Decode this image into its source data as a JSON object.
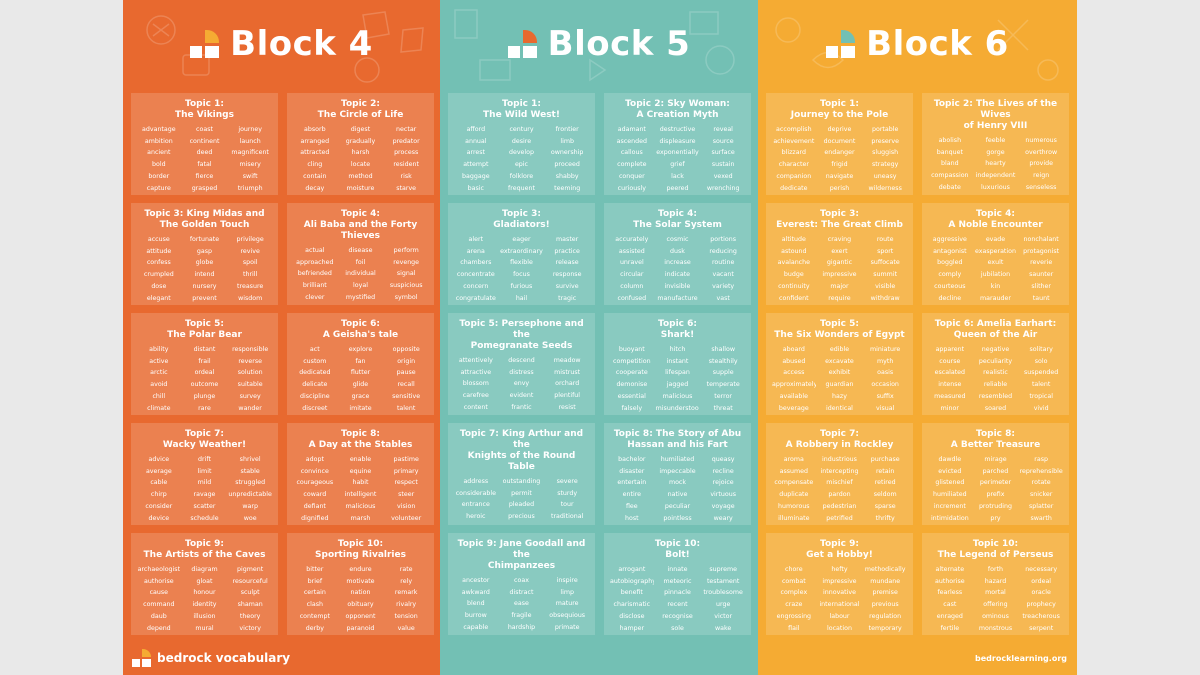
{
  "blocks": [
    {
      "title": "Block 4",
      "accent": "#f5ab33",
      "topics": [
        {
          "title": "Topic 1:\nThe Vikings",
          "words": [
            "advantage",
            "coast",
            "journey",
            "ambition",
            "continent",
            "launch",
            "ancient",
            "deed",
            "magnificent",
            "bold",
            "fatal",
            "misery",
            "border",
            "fierce",
            "swift",
            "capture",
            "grasped",
            "triumph"
          ]
        },
        {
          "title": "Topic 2:\nThe Circle of Life",
          "words": [
            "absorb",
            "digest",
            "nectar",
            "arranged",
            "gradually",
            "predator",
            "attracted",
            "harsh",
            "process",
            "cling",
            "locate",
            "resident",
            "contain",
            "method",
            "risk",
            "decay",
            "moisture",
            "starve"
          ]
        },
        {
          "title": "Topic 3: King Midas and\nThe Golden Touch",
          "words": [
            "accuse",
            "fortunate",
            "privilege",
            "attitude",
            "gasp",
            "revive",
            "confess",
            "globe",
            "spoil",
            "crumpled",
            "intend",
            "thrill",
            "dose",
            "nursery",
            "treasure",
            "elegant",
            "prevent",
            "wisdom"
          ]
        },
        {
          "title": "Topic 4:\nAli Baba and the Forty Thieves",
          "words": [
            "actual",
            "disease",
            "perform",
            "approached",
            "foil",
            "revenge",
            "befriended",
            "individual",
            "signal",
            "brilliant",
            "loyal",
            "suspicious",
            "clever",
            "mystified",
            "symbol",
            "crew",
            "passage",
            "wit"
          ]
        },
        {
          "title": "Topic 5:\nThe Polar Bear",
          "words": [
            "ability",
            "distant",
            "responsible",
            "active",
            "frail",
            "reverse",
            "arctic",
            "ordeal",
            "solution",
            "avoid",
            "outcome",
            "suitable",
            "chill",
            "plunge",
            "survey",
            "climate",
            "rare",
            "wander"
          ]
        },
        {
          "title": "Topic 6:\nA Geisha's tale",
          "words": [
            "act",
            "explore",
            "opposite",
            "custom",
            "fan",
            "origin",
            "dedicated",
            "flutter",
            "pause",
            "delicate",
            "glide",
            "recall",
            "discipline",
            "grace",
            "sensitive",
            "discreet",
            "imitate",
            "talent"
          ]
        },
        {
          "title": "Topic 7:\nWacky Weather!",
          "words": [
            "advice",
            "drift",
            "shrivel",
            "average",
            "limit",
            "stable",
            "cable",
            "mild",
            "struggled",
            "chirp",
            "ravage",
            "unpredictable",
            "consider",
            "scatter",
            "warp",
            "device",
            "schedule",
            "woe"
          ]
        },
        {
          "title": "Topic 8:\nA Day at the Stables",
          "words": [
            "adopt",
            "enable",
            "pastime",
            "convince",
            "equine",
            "primary",
            "courageous",
            "habit",
            "respect",
            "coward",
            "intelligent",
            "steer",
            "defiant",
            "malicious",
            "vision",
            "dignified",
            "marsh",
            "volunteer"
          ]
        },
        {
          "title": "Topic 9:\nThe Artists of the Caves",
          "words": [
            "archaeologist",
            "diagram",
            "pigment",
            "authorise",
            "gloat",
            "resourceful",
            "cause",
            "honour",
            "sculpt",
            "command",
            "identity",
            "shaman",
            "daub",
            "illusion",
            "theory",
            "depend",
            "mural",
            "victory"
          ]
        },
        {
          "title": "Topic 10:\nSporting Rivalries",
          "words": [
            "bitter",
            "endure",
            "rate",
            "brief",
            "motivate",
            "rely",
            "certain",
            "nation",
            "remark",
            "clash",
            "obituary",
            "rivalry",
            "contempt",
            "opponent",
            "tension",
            "derby",
            "paranoid",
            "value"
          ]
        }
      ]
    },
    {
      "title": "Block 5",
      "accent": "#e8692f",
      "topics": [
        {
          "title": "Topic 1:\nThe Wild West!",
          "words": [
            "afford",
            "century",
            "frontier",
            "annual",
            "desire",
            "limb",
            "arrest",
            "develop",
            "ownership",
            "attempt",
            "epic",
            "proceed",
            "baggage",
            "folklore",
            "shabby",
            "basic",
            "frequent",
            "teeming"
          ]
        },
        {
          "title": "Topic 2: Sky Woman:\nA Creation Myth",
          "words": [
            "adamant",
            "destructive",
            "reveal",
            "ascended",
            "displeasure",
            "source",
            "callous",
            "exponentially",
            "surface",
            "complete",
            "grief",
            "sustain",
            "conquer",
            "lack",
            "vexed",
            "curiously",
            "peered",
            "wrenching"
          ]
        },
        {
          "title": "Topic 3:\nGladiators!",
          "words": [
            "alert",
            "eager",
            "master",
            "arena",
            "extraordinary",
            "practice",
            "chambers",
            "flexible",
            "release",
            "concentrate",
            "focus",
            "response",
            "concern",
            "furious",
            "survive",
            "congratulate",
            "hail",
            "tragic"
          ]
        },
        {
          "title": "Topic 4:\nThe Solar System",
          "words": [
            "accurately",
            "cosmic",
            "portions",
            "assisted",
            "dusk",
            "reducing",
            "unravel",
            "increase",
            "routine",
            "circular",
            "indicate",
            "vacant",
            "column",
            "invisible",
            "variety",
            "confused",
            "manufacture",
            "vast"
          ]
        },
        {
          "title": "Topic 5: Persephone and the\nPomegranate Seeds",
          "words": [
            "attentively",
            "descend",
            "meadow",
            "attractive",
            "distress",
            "mistrust",
            "blossom",
            "envy",
            "orchard",
            "carefree",
            "evident",
            "plentiful",
            "content",
            "frantic",
            "resist",
            "crafty",
            "generosity",
            "tidy"
          ]
        },
        {
          "title": "Topic 6:\nShark!",
          "words": [
            "buoyant",
            "hitch",
            "shallow",
            "competition",
            "instant",
            "stealthily",
            "cooperate",
            "lifespan",
            "supple",
            "demonise",
            "jagged",
            "temperate",
            "essential",
            "malicious",
            "terror",
            "falsely",
            "misunderstood",
            "threat"
          ]
        },
        {
          "title": "Topic 7: King Arthur and the\nKnights of the Round Table",
          "words": [
            "address",
            "outstanding",
            "severe",
            "considerable",
            "permit",
            "sturdy",
            "entrance",
            "pleaded",
            "tour",
            "heroic",
            "precious",
            "traditional",
            "modest",
            "prefered",
            "valiant",
            "noble",
            "requested",
            "venture"
          ]
        },
        {
          "title": "Topic 8: The Story of Abu\nHassan and his Fart",
          "words": [
            "bachelor",
            "humiliated",
            "queasy",
            "disaster",
            "impeccable",
            "recline",
            "entertain",
            "mock",
            "rejoice",
            "entire",
            "native",
            "virtuous",
            "flee",
            "peculiar",
            "voyage",
            "host",
            "pointless",
            "weary"
          ]
        },
        {
          "title": "Topic 9: Jane Goodall and the\nChimpanzees",
          "words": [
            "ancestor",
            "coax",
            "inspire",
            "awkward",
            "distract",
            "limp",
            "blend",
            "ease",
            "mature",
            "burrow",
            "fragile",
            "obsequious",
            "capable",
            "hardship",
            "primate",
            "captivity",
            "impact",
            "typical"
          ]
        },
        {
          "title": "Topic 10:\nBolt!",
          "words": [
            "arrogant",
            "innate",
            "supreme",
            "autobiography",
            "meteoric",
            "testament",
            "benefit",
            "pinnacle",
            "troublesome",
            "charismatic",
            "recent",
            "urge",
            "disclose",
            "recognise",
            "victor",
            "hamper",
            "sole",
            "wake"
          ]
        }
      ]
    },
    {
      "title": "Block 6",
      "accent": "#73c0b4",
      "topics": [
        {
          "title": "Topic 1:\nJourney to the Pole",
          "words": [
            "accomplish",
            "deprive",
            "portable",
            "achievement",
            "document",
            "preserve",
            "blizzard",
            "endanger",
            "sluggish",
            "character",
            "frigid",
            "strategy",
            "companion",
            "navigate",
            "uneasy",
            "dedicate",
            "perish",
            "wilderness"
          ]
        },
        {
          "title": "Topic 2: The Lives of the Wives\nof Henry VIII",
          "words": [
            "abolish",
            "feeble",
            "numerous",
            "banquet",
            "gorge",
            "overthrow",
            "bland",
            "hearty",
            "provide",
            "compassion",
            "independent",
            "reign",
            "debate",
            "luxurious",
            "senseless",
            "dictate",
            "monarch",
            "fever"
          ]
        },
        {
          "title": "Topic 3:\nEverest: The Great Climb",
          "words": [
            "altitude",
            "craving",
            "route",
            "astound",
            "exert",
            "sport",
            "avalanche",
            "gigantic",
            "suffocate",
            "budge",
            "impressive",
            "summit",
            "continuity",
            "major",
            "visible",
            "confident",
            "require",
            "withdraw"
          ]
        },
        {
          "title": "Topic 4:\nA Noble Encounter",
          "words": [
            "aggressive",
            "evade",
            "nonchalant",
            "antagonist",
            "exasperation",
            "protagonist",
            "boggled",
            "exult",
            "reverie",
            "comply",
            "jubilation",
            "saunter",
            "courteous",
            "kin",
            "slither",
            "decline",
            "marauder",
            "taunt"
          ]
        },
        {
          "title": "Topic 5:\nThe Six Wonders of Egypt",
          "words": [
            "aboard",
            "edible",
            "miniature",
            "abused",
            "excavate",
            "myth",
            "access",
            "exhibit",
            "oasis",
            "approximately",
            "guardian",
            "occasion",
            "available",
            "hazy",
            "suffix",
            "beverage",
            "identical",
            "visual"
          ]
        },
        {
          "title": "Topic 6: Amelia Earhart:\nQueen of the Air",
          "words": [
            "apparent",
            "negative",
            "solitary",
            "course",
            "peculiarity",
            "solo",
            "escalated",
            "realistic",
            "suspended",
            "intense",
            "reliable",
            "talent",
            "measured",
            "resembled",
            "tropical",
            "minor",
            "soared",
            "vivid"
          ]
        },
        {
          "title": "Topic 7:\nA Robbery in Rockley",
          "words": [
            "aroma",
            "industrious",
            "purchase",
            "assumed",
            "intercepting",
            "retain",
            "compensate",
            "mischief",
            "retired",
            "duplicate",
            "pardon",
            "seldom",
            "humorous",
            "pedestrian",
            "sparse",
            "illuminate",
            "petrified",
            "thrifty"
          ]
        },
        {
          "title": "Topic 8:\nA Better Treasure",
          "words": [
            "dawdle",
            "mirage",
            "rasp",
            "evicted",
            "parched",
            "reprehensible",
            "glistened",
            "perimeter",
            "rotate",
            "humiliated",
            "prefix",
            "snicker",
            "increment",
            "protruding",
            "splatter",
            "intimidation",
            "pry",
            "swarth"
          ]
        },
        {
          "title": "Topic 9:\nGet a Hobby!",
          "words": [
            "chore",
            "hefty",
            "methodically",
            "combat",
            "impressive",
            "mundane",
            "complex",
            "innovative",
            "premise",
            "craze",
            "international",
            "previous",
            "engrossing",
            "labour",
            "regulation",
            "flail",
            "location",
            "temporary"
          ]
        },
        {
          "title": "Topic 10:\nThe Legend of Perseus",
          "words": [
            "alternate",
            "forth",
            "necessary",
            "authorise",
            "hazard",
            "ordeal",
            "fearless",
            "mortal",
            "oracle",
            "cast",
            "offering",
            "prophecy",
            "enraged",
            "ominous",
            "treacherous",
            "fertile",
            "monstrous",
            "serpent"
          ]
        }
      ]
    }
  ],
  "footer": {
    "brand": "bedrock vocabulary",
    "url": "bedrocklearning.org"
  }
}
